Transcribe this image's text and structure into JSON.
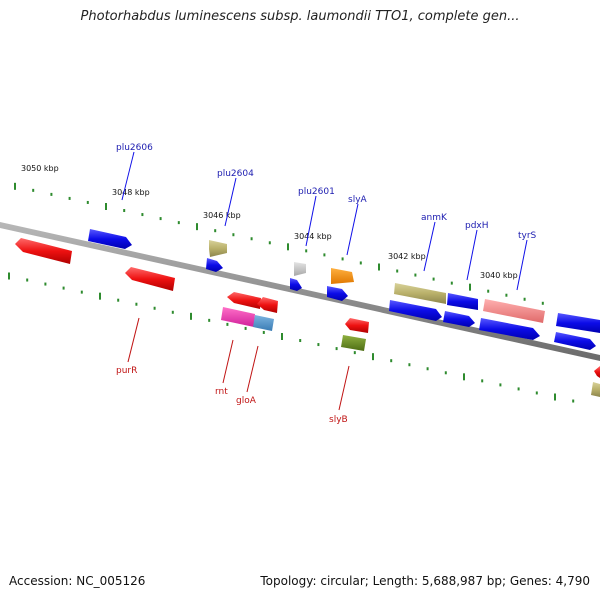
{
  "header": {
    "title": "Photorhabdus luminescens subsp. laumondii TTO1, complete gen..."
  },
  "kbp_labels": [
    "3050 kbp",
    "3048 kbp",
    "3046 kbp",
    "3044 kbp",
    "3042 kbp",
    "3040 kbp"
  ],
  "forward_gene_labels": [
    "plu2606",
    "plu2604",
    "plu2601",
    "slyA",
    "anmK",
    "pdxH",
    "tyrS"
  ],
  "reverse_gene_labels": [
    "purR",
    "rnt",
    "gloA",
    "slyB"
  ],
  "colors": {
    "forward_gene": "#1010e8",
    "reverse_gene": "#ee1111",
    "backbone": "#808080",
    "tick": "#2e8b2e",
    "forward_label": "#1c1cb0",
    "reverse_label": "#c01414"
  },
  "footer": {
    "accession": "Accession: NC_005126",
    "stats": "Topology: circular; Length: 5,688,987 bp; Genes: 4,790"
  }
}
